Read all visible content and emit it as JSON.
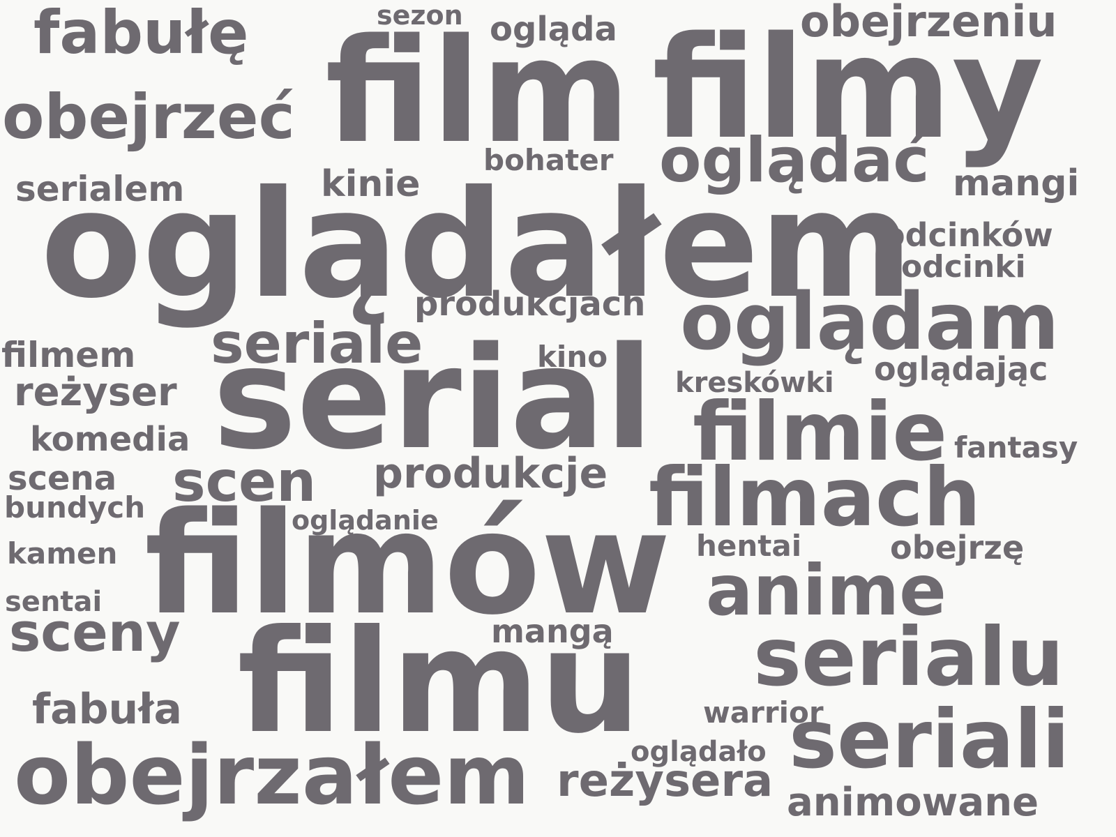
{
  "colors": {
    "background": "#f9f9f7",
    "text": "#6e6a70"
  },
  "words": {
    "film": "film",
    "filmy": "filmy",
    "ogladalem": "oglądałem",
    "serial": "serial",
    "filmow": "filmów",
    "filmu": "filmu",
    "obejrzalem": "obejrzałem",
    "ogladam": "oglądam",
    "ogladac": "oglądać",
    "obejrzec": "obejrzeć",
    "fabule": "fabułę",
    "filmie": "filmie",
    "filmach": "filmach",
    "anime": "anime",
    "serialu": "serialu",
    "seriali": "seriali",
    "seriale": "seriale",
    "scen": "scen",
    "sceny": "sceny",
    "produkcje": "produkcje",
    "produkcjach": "produkcjach",
    "obejrzeniu": "obejrzeniu",
    "ogląda": "ogląda",
    "sezon": "sezon",
    "bohater": "bohater",
    "kinie": "kinie",
    "serialem": "serialem",
    "mangi": "mangi",
    "odcinkow": "odcinków",
    "odcinki": "odcinki",
    "filmem": "filmem",
    "rezyser": "reżyser",
    "komedia": "komedia",
    "kino": "kino",
    "kreskowki": "kreskówki",
    "ogladajac": "oglądając",
    "fantasy": "fantasy",
    "scena": "scena",
    "bundych": "bundych",
    "ogladanie": "oglądanie",
    "kamen": "kamen",
    "hentai": "hentai",
    "obejrze": "obejrzę",
    "sentai": "sentai",
    "manga": "mangą",
    "fabula": "fabuła",
    "warrior": "warrior",
    "ogladalo": "oglądało",
    "rezysera": "reżysera",
    "animowane": "animowane"
  }
}
